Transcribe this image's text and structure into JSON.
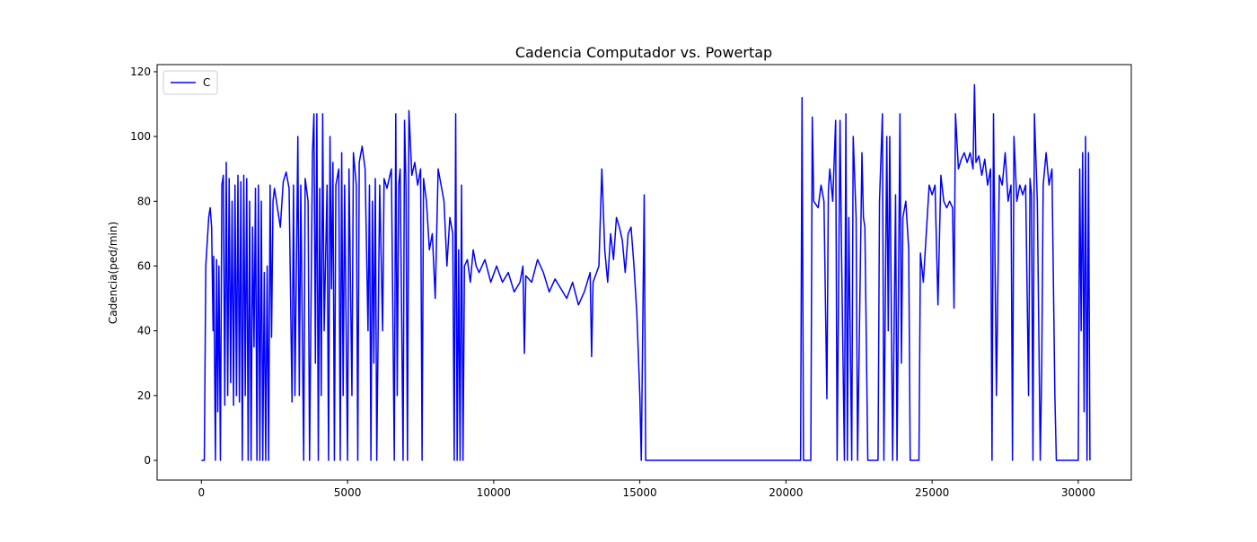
{
  "chart_data": {
    "type": "line",
    "title": "Cadencia Computador vs. Powertap",
    "ylabel": "Cadencia(ped/min)",
    "x": [
      0,
      100,
      150,
      250,
      300,
      350,
      400,
      420,
      480,
      520,
      560,
      600,
      650,
      700,
      750,
      800,
      850,
      900,
      950,
      1000,
      1050,
      1100,
      1150,
      1200,
      1250,
      1300,
      1350,
      1400,
      1450,
      1500,
      1550,
      1600,
      1650,
      1700,
      1750,
      1800,
      1850,
      1900,
      1950,
      2000,
      2050,
      2100,
      2150,
      2200,
      2250,
      2300,
      2350,
      2400,
      2450,
      2500,
      2600,
      2700,
      2800,
      2900,
      3000,
      3100,
      3150,
      3200,
      3300,
      3350,
      3400,
      3500,
      3550,
      3650,
      3700,
      3800,
      3850,
      3900,
      3950,
      4000,
      4050,
      4100,
      4150,
      4200,
      4300,
      4350,
      4400,
      4450,
      4500,
      4550,
      4600,
      4700,
      4750,
      4800,
      4850,
      4900,
      5000,
      5050,
      5150,
      5200,
      5300,
      5350,
      5400,
      5500,
      5600,
      5700,
      5750,
      5800,
      5850,
      5900,
      5950,
      6000,
      6100,
      6200,
      6250,
      6350,
      6500,
      6600,
      6650,
      6700,
      6750,
      6800,
      6900,
      6950,
      7000,
      7050,
      7100,
      7200,
      7300,
      7400,
      7500,
      7550,
      7600,
      7700,
      7800,
      7900,
      8000,
      8100,
      8200,
      8300,
      8400,
      8500,
      8600,
      8650,
      8700,
      8750,
      8800,
      8850,
      8900,
      8950,
      9000,
      9100,
      9200,
      9300,
      9400,
      9500,
      9700,
      9900,
      10100,
      10300,
      10500,
      10700,
      10900,
      11000,
      11050,
      11100,
      11300,
      11500,
      11700,
      11900,
      12100,
      12300,
      12500,
      12700,
      12900,
      13100,
      13300,
      13350,
      13400,
      13600,
      13700,
      13800,
      13900,
      14000,
      14100,
      14200,
      14300,
      14400,
      14500,
      14600,
      14700,
      14800,
      14900,
      15000,
      15050,
      15150,
      15200,
      20500,
      20550,
      20600,
      20850,
      20900,
      20950,
      21100,
      21200,
      21300,
      21400,
      21450,
      21500,
      21600,
      21700,
      21750,
      21850,
      21900,
      22000,
      22050,
      22100,
      22150,
      22250,
      22300,
      22400,
      22450,
      22600,
      22650,
      22700,
      22800,
      23150,
      23200,
      23300,
      23350,
      23450,
      23500,
      23550,
      23650,
      23750,
      23800,
      23900,
      23950,
      24000,
      24100,
      24200,
      24250,
      24550,
      24600,
      24700,
      24800,
      24900,
      25000,
      25100,
      25200,
      25300,
      25400,
      25500,
      25600,
      25700,
      25750,
      25800,
      25900,
      26000,
      26100,
      26200,
      26300,
      26400,
      26450,
      26500,
      26600,
      26700,
      26800,
      26900,
      27000,
      27050,
      27100,
      27200,
      27300,
      27400,
      27500,
      27600,
      27700,
      27750,
      27800,
      27900,
      28000,
      28100,
      28200,
      28300,
      28350,
      28400,
      28450,
      28500,
      28600,
      28700,
      28750,
      28800,
      28900,
      29000,
      29100,
      29200,
      29250,
      30000,
      30050,
      30100,
      30150,
      30200,
      30250,
      30300,
      30350,
      30400
    ],
    "series": [
      {
        "name": "C",
        "color": "#0000ff",
        "values": [
          0,
          0,
          60,
          75,
          78,
          72,
          40,
          63,
          0,
          62,
          15,
          60,
          0,
          85,
          88,
          17,
          92,
          20,
          87,
          24,
          80,
          17,
          85,
          20,
          88,
          18,
          86,
          0,
          88,
          20,
          87,
          0,
          80,
          0,
          72,
          35,
          84,
          0,
          85,
          0,
          80,
          0,
          58,
          0,
          60,
          0,
          85,
          38,
          80,
          84,
          78,
          72,
          86,
          89,
          84,
          18,
          85,
          20,
          100,
          20,
          85,
          0,
          87,
          80,
          0,
          95,
          107,
          30,
          107,
          0,
          84,
          20,
          107,
          40,
          85,
          0,
          100,
          53,
          92,
          0,
          85,
          90,
          0,
          95,
          20,
          85,
          0,
          90,
          20,
          95,
          85,
          0,
          92,
          97,
          90,
          40,
          85,
          0,
          80,
          30,
          87,
          0,
          85,
          40,
          87,
          84,
          90,
          0,
          107,
          20,
          85,
          90,
          0,
          105,
          85,
          0,
          108,
          88,
          92,
          85,
          90,
          0,
          87,
          80,
          65,
          70,
          50,
          90,
          85,
          80,
          60,
          75,
          70,
          0,
          107,
          0,
          65,
          0,
          85,
          0,
          60,
          62,
          55,
          65,
          60,
          58,
          62,
          55,
          60,
          55,
          58,
          52,
          55,
          60,
          33,
          57,
          55,
          62,
          58,
          52,
          56,
          53,
          50,
          55,
          48,
          52,
          58,
          32,
          55,
          60,
          90,
          65,
          55,
          70,
          62,
          75,
          72,
          68,
          58,
          70,
          72,
          60,
          45,
          20,
          0,
          82,
          0,
          0,
          112,
          0,
          0,
          106,
          80,
          78,
          85,
          80,
          19,
          83,
          90,
          80,
          105,
          0,
          105,
          65,
          0,
          107,
          0,
          75,
          0,
          100,
          75,
          0,
          95,
          75,
          72,
          0,
          0,
          80,
          107,
          0,
          100,
          40,
          100,
          0,
          82,
          0,
          107,
          30,
          75,
          80,
          65,
          0,
          0,
          64,
          55,
          70,
          85,
          82,
          85,
          48,
          88,
          80,
          78,
          80,
          78,
          47,
          107,
          90,
          93,
          95,
          92,
          95,
          90,
          116,
          92,
          94,
          88,
          93,
          85,
          90,
          0,
          107,
          20,
          88,
          85,
          95,
          80,
          85,
          0,
          100,
          80,
          85,
          82,
          85,
          20,
          87,
          82,
          0,
          107,
          80,
          0,
          28,
          85,
          95,
          85,
          90,
          20,
          0,
          0,
          90,
          40,
          95,
          15,
          100,
          0,
          95,
          0
        ]
      }
    ],
    "xlim": [
      -1515,
      31815
    ],
    "ylim": [
      -6.1,
      122.2
    ],
    "xticks": [
      0,
      5000,
      10000,
      15000,
      20000,
      25000,
      30000
    ],
    "yticks": [
      0,
      20,
      40,
      60,
      80,
      100,
      120
    ],
    "legend": "upper left"
  }
}
